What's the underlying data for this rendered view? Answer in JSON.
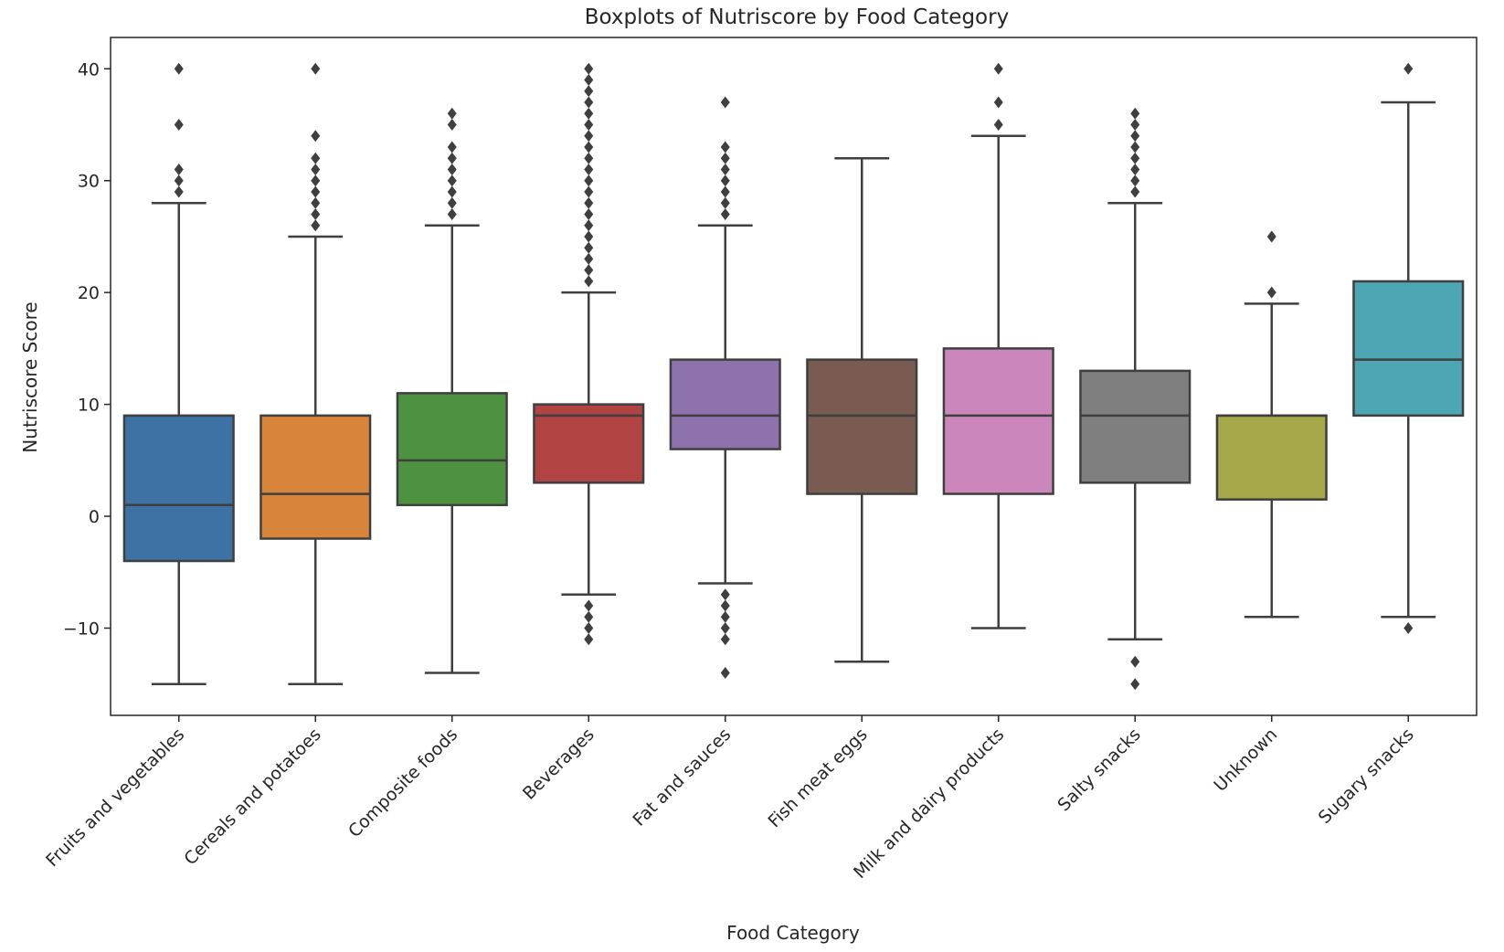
{
  "chart_data": {
    "type": "boxplot",
    "title": "Boxplots of Nutriscore by Food Category",
    "xlabel": "Food Category",
    "ylabel": "Nutriscore Score",
    "ylim": [
      -17.8,
      42.8
    ],
    "yticks": [
      -10,
      0,
      10,
      20,
      30,
      40
    ],
    "ytick_labels": [
      "−10",
      "0",
      "10",
      "20",
      "30",
      "40"
    ],
    "grid": false,
    "categories": [
      "Fruits and vegetables",
      "Cereals and potatoes",
      "Composite foods",
      "Beverages",
      "Fat and sauces",
      "Fish meat eggs",
      "Milk and dairy products",
      "Salty snacks",
      "Unknown",
      "Sugary snacks"
    ],
    "boxes": [
      {
        "category": "Fruits and vegetables",
        "color": "#3f72a4",
        "whislo": -15,
        "q1": -4,
        "median": 1,
        "q3": 9,
        "whishi": 28,
        "fliers": [
          29,
          30,
          31,
          35,
          40
        ]
      },
      {
        "category": "Cereals and potatoes",
        "color": "#d8843b",
        "whislo": -15,
        "q1": -2,
        "median": 2,
        "q3": 9,
        "whishi": 25,
        "fliers": [
          26,
          27,
          28,
          29,
          30,
          31,
          32,
          34,
          40
        ]
      },
      {
        "category": "Composite foods",
        "color": "#4d9141",
        "whislo": -14,
        "q1": 1,
        "median": 5,
        "q3": 11,
        "whishi": 26,
        "fliers": [
          27,
          28,
          29,
          30,
          31,
          32,
          33,
          35,
          36
        ]
      },
      {
        "category": "Beverages",
        "color": "#b14343",
        "whislo": -7,
        "q1": 3,
        "median": 9,
        "q3": 10,
        "whishi": 20,
        "fliers": [
          -11,
          -10,
          -9,
          -8,
          21,
          22,
          23,
          24,
          25,
          26,
          27,
          28,
          29,
          30,
          31,
          32,
          33,
          34,
          35,
          36,
          37,
          38,
          39,
          40
        ]
      },
      {
        "category": "Fat and sauces",
        "color": "#8d72ad",
        "whislo": -6,
        "q1": 6,
        "median": 9,
        "q3": 14,
        "whishi": 26,
        "fliers": [
          -14,
          -11,
          -10,
          -9,
          -8,
          -7,
          27,
          28,
          29,
          30,
          31,
          32,
          33,
          37
        ]
      },
      {
        "category": "Fish meat eggs",
        "color": "#7a5b51",
        "whislo": -13,
        "q1": 2,
        "median": 9,
        "q3": 14,
        "whishi": 32,
        "fliers": []
      },
      {
        "category": "Milk and dairy products",
        "color": "#cb87bc",
        "whislo": -10,
        "q1": 2,
        "median": 9,
        "q3": 15,
        "whishi": 34,
        "fliers": [
          35,
          37,
          40
        ]
      },
      {
        "category": "Salty snacks",
        "color": "#7f7f7f",
        "whislo": -11,
        "q1": 3,
        "median": 9,
        "q3": 13,
        "whishi": 28,
        "fliers": [
          -15,
          -13,
          29,
          30,
          31,
          32,
          33,
          34,
          35,
          36
        ]
      },
      {
        "category": "Unknown",
        "color": "#a6a84a",
        "whislo": -9,
        "q1": 1.5,
        "median": 9,
        "q3": 9,
        "whishi": 19,
        "fliers": [
          20,
          25
        ]
      },
      {
        "category": "Sugary snacks",
        "color": "#4da6b3",
        "whislo": -9,
        "q1": 9,
        "median": 14,
        "q3": 21,
        "whishi": 37,
        "fliers": [
          -10,
          40
        ]
      }
    ]
  }
}
